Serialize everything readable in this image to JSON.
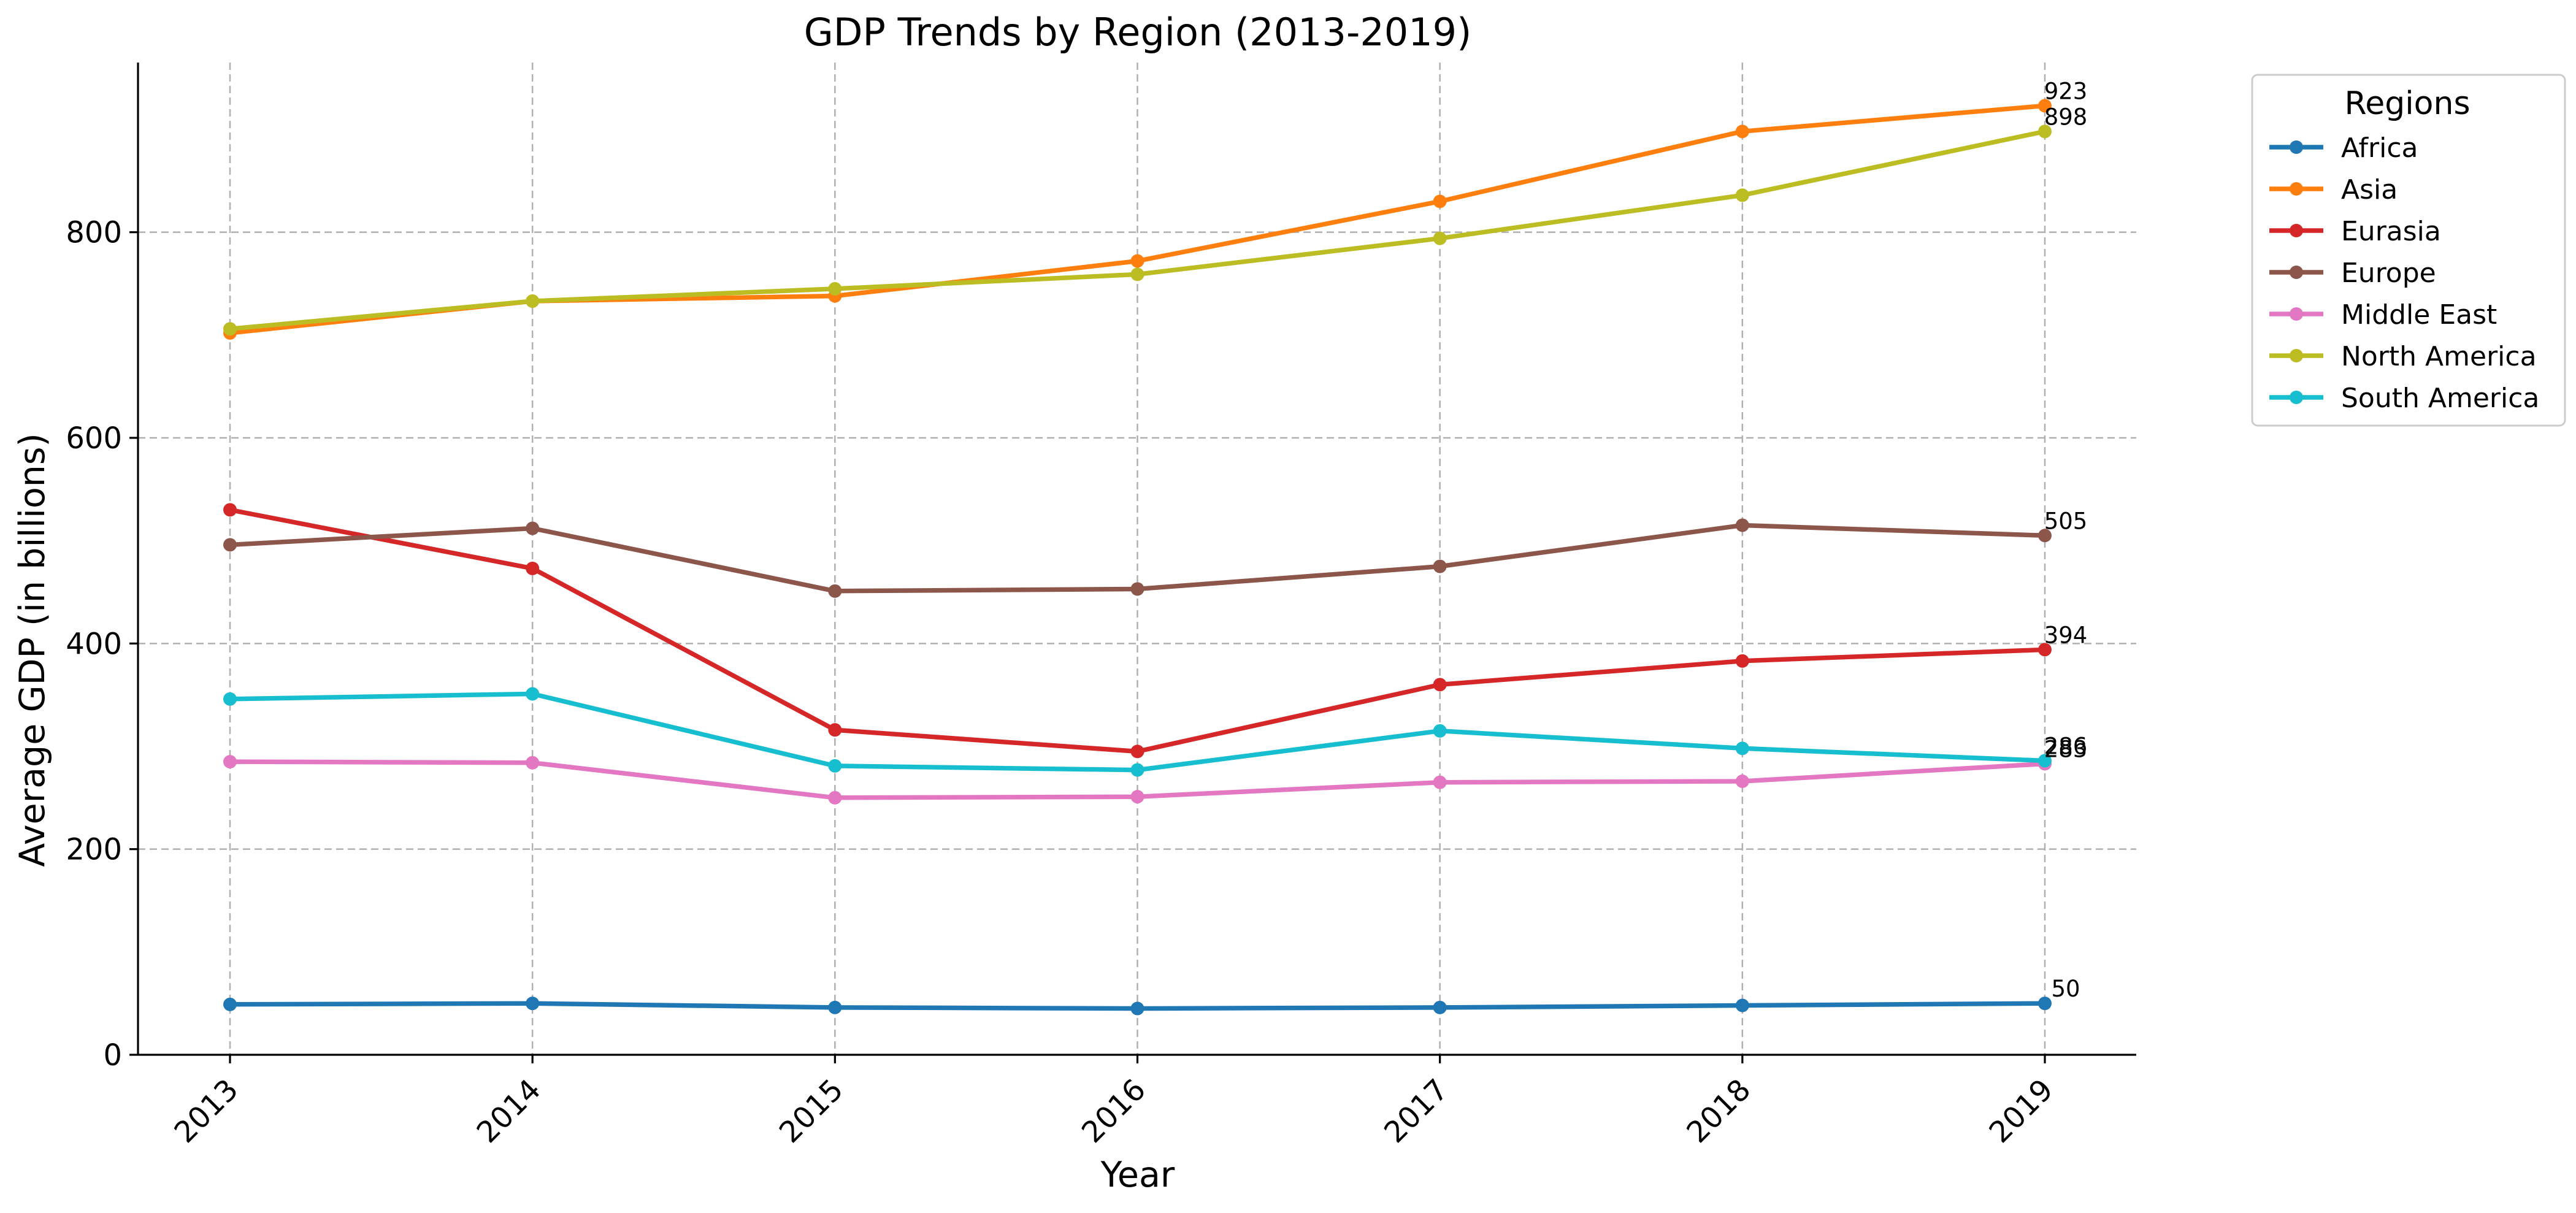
{
  "chart_data": {
    "type": "line",
    "title": "GDP Trends by Region (2013-2019)",
    "xlabel": "Year",
    "ylabel": "Average GDP (in billions)",
    "x": [
      "2013",
      "2014",
      "2015",
      "2016",
      "2017",
      "2018",
      "2019"
    ],
    "ylim": [
      0,
      965
    ],
    "yticks": [
      0,
      200,
      400,
      600,
      800
    ],
    "grid": true,
    "legend": {
      "title": "Regions",
      "placement": "outside-top-right"
    },
    "series": [
      {
        "name": "Africa",
        "color": "#1f77b4",
        "values": [
          49,
          50,
          46,
          45,
          46,
          48,
          50
        ],
        "end_label": "50"
      },
      {
        "name": "Asia",
        "color": "#ff7f0e",
        "values": [
          702,
          733,
          738,
          772,
          830,
          898,
          923
        ],
        "end_label": "923"
      },
      {
        "name": "Eurasia",
        "color": "#d62728",
        "values": [
          530,
          473,
          316,
          295,
          360,
          383,
          394
        ],
        "end_label": "394"
      },
      {
        "name": "Europe",
        "color": "#8c564b",
        "values": [
          496,
          512,
          451,
          453,
          475,
          515,
          505
        ],
        "end_label": "505"
      },
      {
        "name": "Middle East",
        "color": "#e377c2",
        "values": [
          285,
          284,
          250,
          251,
          265,
          266,
          283
        ],
        "end_label": "283"
      },
      {
        "name": "North America",
        "color": "#bcbd22",
        "values": [
          706,
          733,
          745,
          759,
          794,
          836,
          898
        ],
        "end_label": "898"
      },
      {
        "name": "South America",
        "color": "#17becf",
        "values": [
          346,
          351,
          281,
          277,
          315,
          298,
          286
        ],
        "end_label": "286"
      }
    ]
  }
}
